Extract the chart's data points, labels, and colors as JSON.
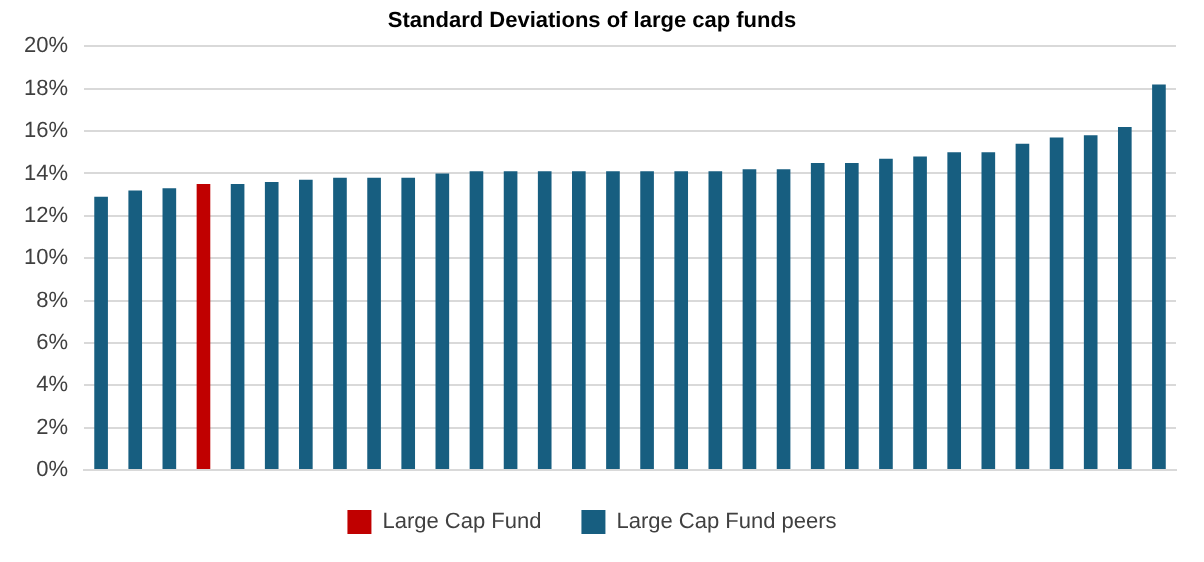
{
  "chart_data": {
    "type": "bar",
    "title": "Standard Deviations of large cap funds",
    "categories": [
      null,
      null,
      null,
      null,
      null,
      null,
      null,
      null,
      null,
      null,
      null,
      null,
      null,
      null,
      null,
      null,
      null,
      null,
      null,
      null,
      null,
      null,
      null,
      null,
      null,
      null,
      null,
      null,
      null,
      null,
      null,
      null
    ],
    "series": [
      {
        "name": "Large Cap Fund",
        "color": "#c00000",
        "values": [
          null,
          null,
          null,
          13.5,
          null,
          null,
          null,
          null,
          null,
          null,
          null,
          null,
          null,
          null,
          null,
          null,
          null,
          null,
          null,
          null,
          null,
          null,
          null,
          null,
          null,
          null,
          null,
          null,
          null,
          null,
          null,
          null
        ]
      },
      {
        "name": "Large Cap Fund peers",
        "color": "#175e80",
        "values": [
          12.9,
          13.2,
          13.3,
          null,
          13.5,
          13.6,
          13.7,
          13.8,
          13.8,
          13.8,
          14.0,
          14.1,
          14.1,
          14.1,
          14.1,
          14.1,
          14.1,
          14.1,
          14.1,
          14.2,
          14.2,
          14.5,
          14.5,
          14.7,
          14.8,
          15.0,
          15.0,
          15.4,
          15.7,
          15.8,
          16.2,
          18.2
        ]
      }
    ],
    "ylim": [
      0,
      20
    ],
    "yticks": [
      {
        "value": 0,
        "label": "0%"
      },
      {
        "value": 2,
        "label": "2%"
      },
      {
        "value": 4,
        "label": "4%"
      },
      {
        "value": 6,
        "label": "6%"
      },
      {
        "value": 8,
        "label": "8%"
      },
      {
        "value": 10,
        "label": "10%"
      },
      {
        "value": 12,
        "label": "12%"
      },
      {
        "value": 14,
        "label": "14%"
      },
      {
        "value": 16,
        "label": "16%"
      },
      {
        "value": 18,
        "label": "18%"
      },
      {
        "value": 20,
        "label": "20%"
      }
    ],
    "grid": "y",
    "legend": "bottom",
    "tick_labels": "y"
  }
}
